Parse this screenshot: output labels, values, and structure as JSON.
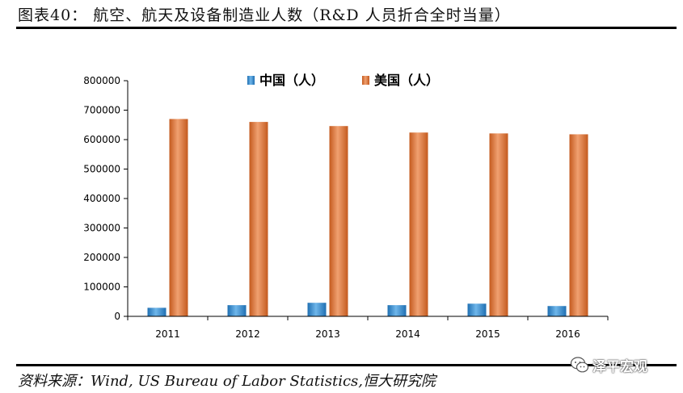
{
  "title": "图表40：  航空、航天及设备制造业人数（R&D 人员折合全时当量）",
  "source": "资料来源：Wind, US Bureau of Labor Statistics,恒大研究院",
  "watermark": {
    "text": "泽平宏观",
    "icon": "wechat-icon"
  },
  "colors": {
    "china": "#2e86c9",
    "usa": "#d9722f",
    "axis": "#000000"
  },
  "chart_data": {
    "type": "bar",
    "title": "",
    "xlabel": "",
    "ylabel": "",
    "ylim": [
      0,
      800000
    ],
    "yticks": [
      0,
      100000,
      200000,
      300000,
      400000,
      500000,
      600000,
      700000,
      800000
    ],
    "ytick_labels": [
      "0",
      "100000",
      "200000",
      "300000",
      "400000",
      "500000",
      "600000",
      "700000",
      "800000"
    ],
    "categories": [
      "2011",
      "2012",
      "2013",
      "2014",
      "2015",
      "2016"
    ],
    "legend": "top-center",
    "grid": false,
    "series": [
      {
        "name": "中国（人）",
        "values": [
          29000,
          38000,
          46000,
          38000,
          43000,
          35000
        ]
      },
      {
        "name": "美国（人）",
        "values": [
          670000,
          660000,
          646000,
          624000,
          621000,
          618000
        ]
      }
    ]
  }
}
